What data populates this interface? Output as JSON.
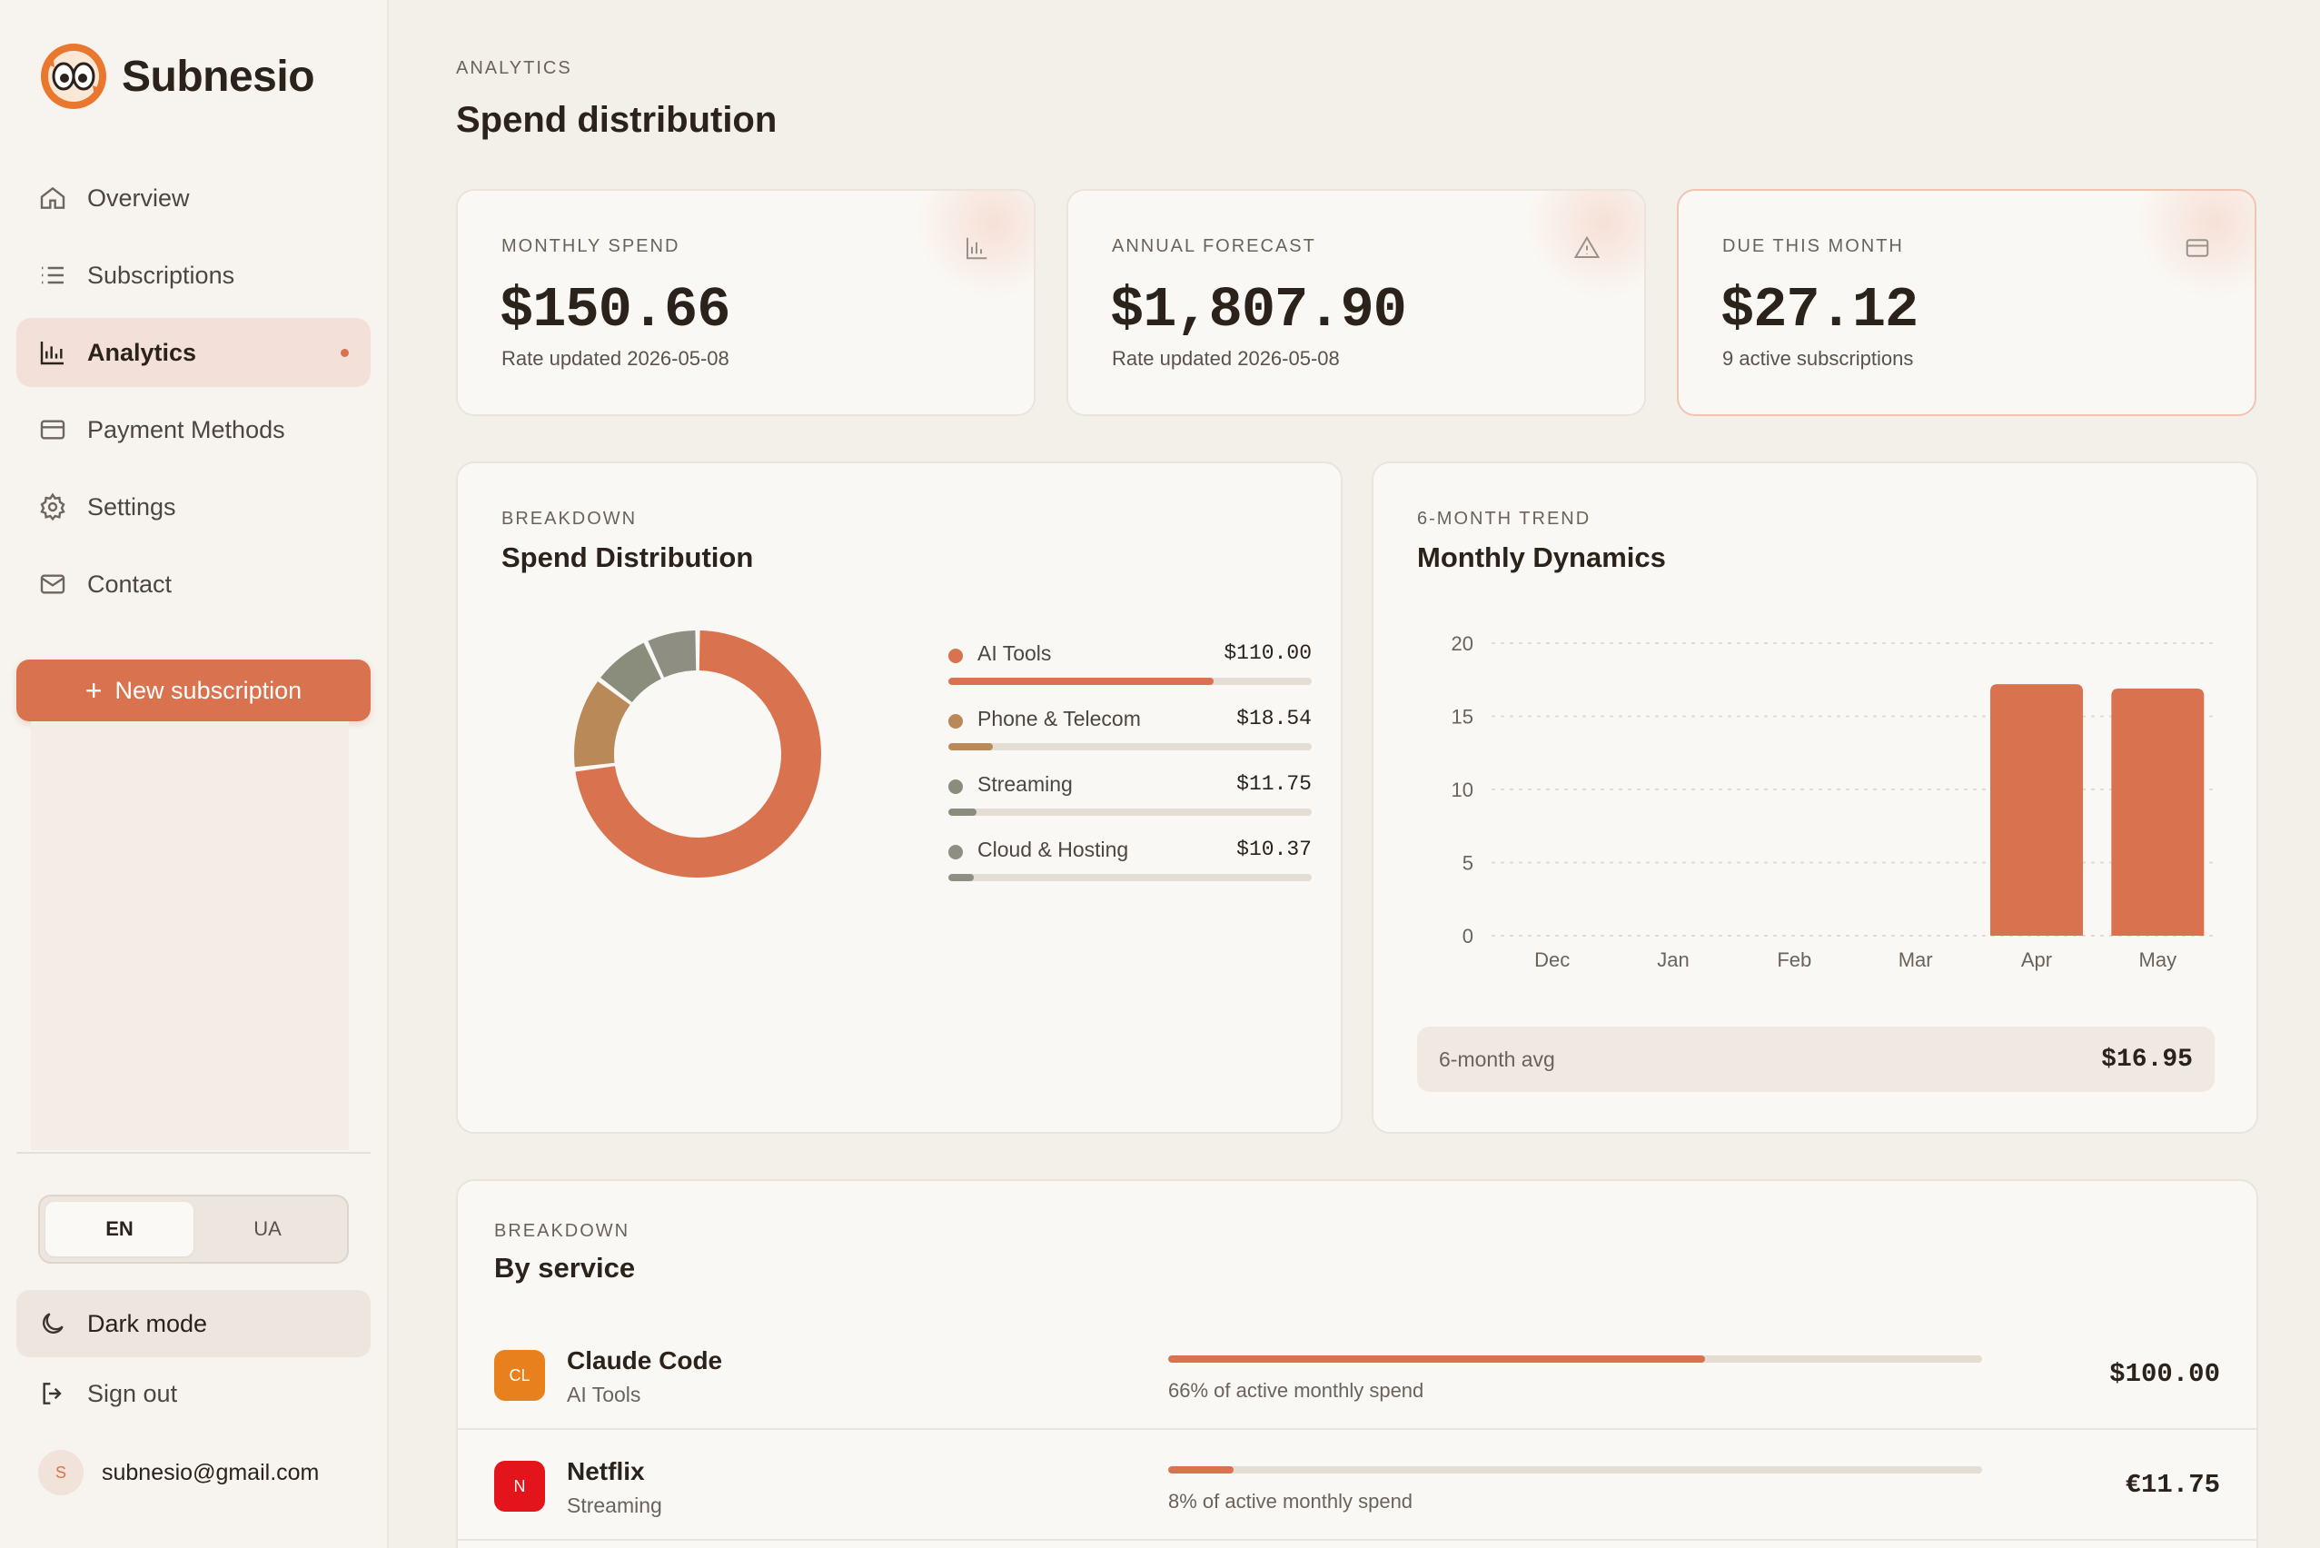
{
  "app": {
    "name": "Subnesio"
  },
  "sidebar": {
    "items": [
      {
        "label": "Overview",
        "icon": "home-icon"
      },
      {
        "label": "Subscriptions",
        "icon": "list-icon"
      },
      {
        "label": "Analytics",
        "icon": "bar-chart-icon",
        "active": true
      },
      {
        "label": "Payment Methods",
        "icon": "credit-card-icon"
      },
      {
        "label": "Settings",
        "icon": "gear-icon"
      },
      {
        "label": "Contact",
        "icon": "mail-icon"
      }
    ],
    "new_subscription": "New subscription",
    "languages": [
      "EN",
      "UA"
    ],
    "selected_language": "EN",
    "dark_mode": "Dark mode",
    "sign_out": "Sign out",
    "user": {
      "initial": "S",
      "email": "subnesio@gmail.com"
    }
  },
  "header": {
    "eyebrow": "ANALYTICS",
    "title": "Spend distribution"
  },
  "stats": [
    {
      "label": "MONTHLY SPEND",
      "value": "$150.66",
      "sub": "Rate updated 2026-05-08",
      "icon": "bar-chart-icon"
    },
    {
      "label": "ANNUAL FORECAST",
      "value": "$1,807.90",
      "sub": "Rate updated 2026-05-08",
      "icon": "warning-icon"
    },
    {
      "label": "DUE THIS MONTH",
      "value": "$27.12",
      "sub": "9 active subscriptions",
      "icon": "credit-card-icon"
    }
  ],
  "distribution": {
    "eyebrow": "BREAKDOWN",
    "title": "Spend Distribution",
    "categories": [
      {
        "name": "AI Tools",
        "amount": "$110.00",
        "value": 110.0,
        "color": "#d9734f"
      },
      {
        "name": "Phone & Telecom",
        "amount": "$18.54",
        "value": 18.54,
        "color": "#b98a58"
      },
      {
        "name": "Streaming",
        "amount": "$11.75",
        "value": 11.75,
        "color": "#8a8c7c"
      },
      {
        "name": "Cloud & Hosting",
        "amount": "$10.37",
        "value": 10.37,
        "color": "#8e8e82"
      }
    ]
  },
  "trend": {
    "eyebrow": "6-MONTH TREND",
    "title": "Monthly Dynamics",
    "avg_label": "6-month avg",
    "avg_value": "$16.95"
  },
  "chart_data": {
    "type": "bar",
    "categories": [
      "Dec",
      "Jan",
      "Feb",
      "Mar",
      "Apr",
      "May"
    ],
    "values": [
      0,
      0,
      0,
      0,
      17.2,
      16.9
    ],
    "yticks": [
      0,
      5,
      10,
      15,
      20
    ],
    "ylim": [
      0,
      20
    ],
    "grid": true,
    "color": "#d9734f"
  },
  "services": {
    "eyebrow": "BREAKDOWN",
    "title": "By service",
    "rows": [
      {
        "initials": "CL",
        "name": "Claude Code",
        "category": "AI Tools",
        "share": 0.66,
        "pct_text": "66% of active monthly spend",
        "amount": "$100.00",
        "color": "#e8801e"
      },
      {
        "initials": "N",
        "name": "Netflix",
        "category": "Streaming",
        "share": 0.08,
        "pct_text": "8% of active monthly spend",
        "amount": "€11.75",
        "color": "#e3141c"
      }
    ]
  }
}
